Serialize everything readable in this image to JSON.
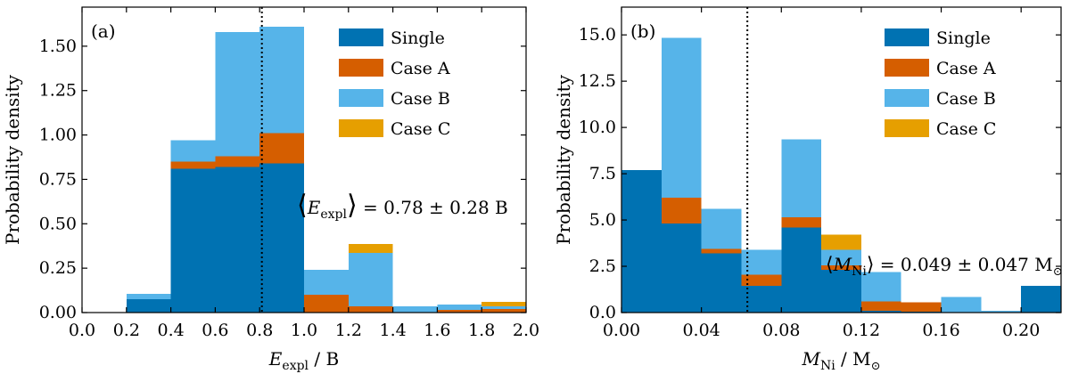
{
  "chart_data": [
    {
      "type": "bar",
      "stacked": true,
      "panel_label": "(a)",
      "xlabel": "E_expl / B",
      "xlabel_main": "E",
      "xlabel_sub": "expl",
      "xlabel_unit": " / B",
      "ylabel": "Probability density",
      "xlim": [
        0.0,
        2.0
      ],
      "ylim": [
        0.0,
        1.72
      ],
      "xticks": [
        0.0,
        0.2,
        0.4,
        0.6,
        0.8,
        1.0,
        1.2,
        1.4,
        1.6,
        1.8,
        2.0
      ],
      "xtick_labels": [
        "0.0",
        "0.2",
        "0.4",
        "0.6",
        "0.8",
        "1.0",
        "1.2",
        "1.4",
        "1.6",
        "1.8",
        "2.0"
      ],
      "yticks": [
        0.0,
        0.25,
        0.5,
        0.75,
        1.0,
        1.25,
        1.5
      ],
      "ytick_labels": [
        "0.00",
        "0.25",
        "0.50",
        "0.75",
        "1.00",
        "1.25",
        "1.50"
      ],
      "bin_edges": [
        0.2,
        0.4,
        0.6,
        0.8,
        1.0,
        1.2,
        1.4,
        1.6,
        1.8,
        2.0
      ],
      "series": [
        {
          "name": "Single",
          "color": "#0072b2",
          "values": [
            0.075,
            0.81,
            0.82,
            0.84,
            0.0,
            0.0,
            0.0,
            0.0,
            0.0
          ]
        },
        {
          "name": "Case A",
          "color": "#d55e00",
          "values": [
            0.0,
            0.04,
            0.06,
            0.17,
            0.1,
            0.035,
            0.0,
            0.015,
            0.02
          ]
        },
        {
          "name": "Case B",
          "color": "#56b4e9",
          "values": [
            0.03,
            0.12,
            0.7,
            0.6,
            0.14,
            0.3,
            0.035,
            0.03,
            0.015
          ]
        },
        {
          "name": "Case C",
          "color": "#e69f00",
          "values": [
            0.0,
            0.0,
            0.0,
            0.0,
            0.0,
            0.05,
            0.0,
            0.0,
            0.025
          ]
        }
      ],
      "single_last_bin_split": {
        "bin_start": 0.8,
        "upper_value": 0.79
      },
      "mean_line_x": 0.81,
      "annotation": {
        "prefix": "E",
        "sub": "expl",
        "value_text": " = 0.78 ± 0.28 B"
      },
      "legend_position": "top-right"
    },
    {
      "type": "bar",
      "stacked": true,
      "panel_label": "(b)",
      "xlabel": "M_Ni / M_sun",
      "xlabel_main": "M",
      "xlabel_sub": "Ni",
      "xlabel_unit": " / M",
      "ylabel": "Probability density",
      "xlim": [
        0.0,
        0.22
      ],
      "ylim": [
        0.0,
        16.5
      ],
      "xticks": [
        0.0,
        0.04,
        0.08,
        0.12,
        0.16,
        0.2
      ],
      "xtick_labels": [
        "0.00",
        "0.04",
        "0.08",
        "0.12",
        "0.16",
        "0.20"
      ],
      "yticks": [
        0.0,
        2.5,
        5.0,
        7.5,
        10.0,
        12.5,
        15.0
      ],
      "ytick_labels": [
        "0.0",
        "2.5",
        "5.0",
        "7.5",
        "10.0",
        "12.5",
        "15.0"
      ],
      "bin_edges": [
        0.0,
        0.02,
        0.04,
        0.06,
        0.08,
        0.1,
        0.12,
        0.14,
        0.16,
        0.18,
        0.2,
        0.22
      ],
      "series": [
        {
          "name": "Single",
          "color": "#0072b2",
          "values": [
            7.7,
            4.8,
            3.2,
            1.45,
            4.6,
            2.3,
            0.1,
            0.05,
            0.0,
            0.0,
            1.45
          ]
        },
        {
          "name": "Case A",
          "color": "#d55e00",
          "values": [
            0.0,
            1.4,
            0.25,
            0.6,
            0.55,
            0.25,
            0.5,
            0.5,
            0.0,
            0.0,
            0.0
          ]
        },
        {
          "name": "Case B",
          "color": "#56b4e9",
          "values": [
            0.0,
            8.65,
            2.15,
            1.35,
            4.2,
            0.85,
            1.6,
            0.0,
            0.85,
            0.1,
            0.0
          ]
        },
        {
          "name": "Case C",
          "color": "#e69f00",
          "values": [
            0.0,
            0.0,
            0.0,
            0.0,
            0.0,
            0.8,
            0.0,
            0.0,
            0.0,
            0.0,
            0.0
          ]
        }
      ],
      "mean_line_x": 0.063,
      "annotation": {
        "prefix": "M",
        "sub": "Ni",
        "value_text": " = 0.049 ± 0.047 M"
      },
      "legend_position": "top-right"
    }
  ]
}
